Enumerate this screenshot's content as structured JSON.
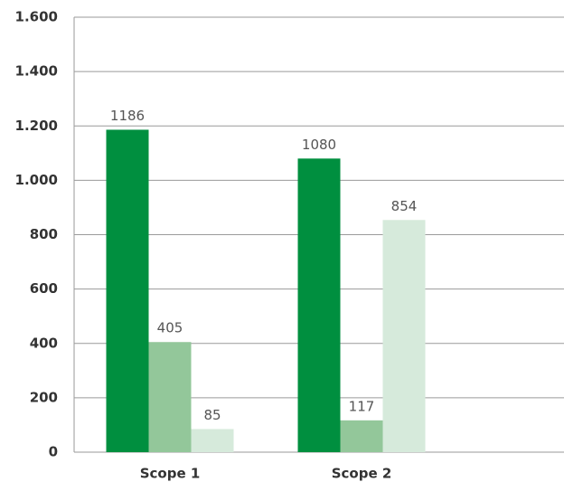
{
  "chart_data": {
    "type": "bar",
    "categories": [
      "Scope 1",
      "Scope 2"
    ],
    "series": [
      {
        "color": "#008f3f",
        "values": [
          1186,
          1080
        ]
      },
      {
        "color": "#93c79a",
        "values": [
          405,
          117
        ]
      },
      {
        "color": "#d6eadb",
        "values": [
          85,
          854
        ]
      }
    ],
    "ylim": [
      0,
      1600
    ],
    "yticks": [
      0,
      200,
      400,
      600,
      800,
      {
        "value": 1000,
        "label": "1.000"
      },
      {
        "value": 1200,
        "label": "1.200"
      },
      {
        "value": 1400,
        "label": "1.400"
      },
      {
        "value": 1600,
        "label": "1.600"
      }
    ],
    "grid": true
  }
}
